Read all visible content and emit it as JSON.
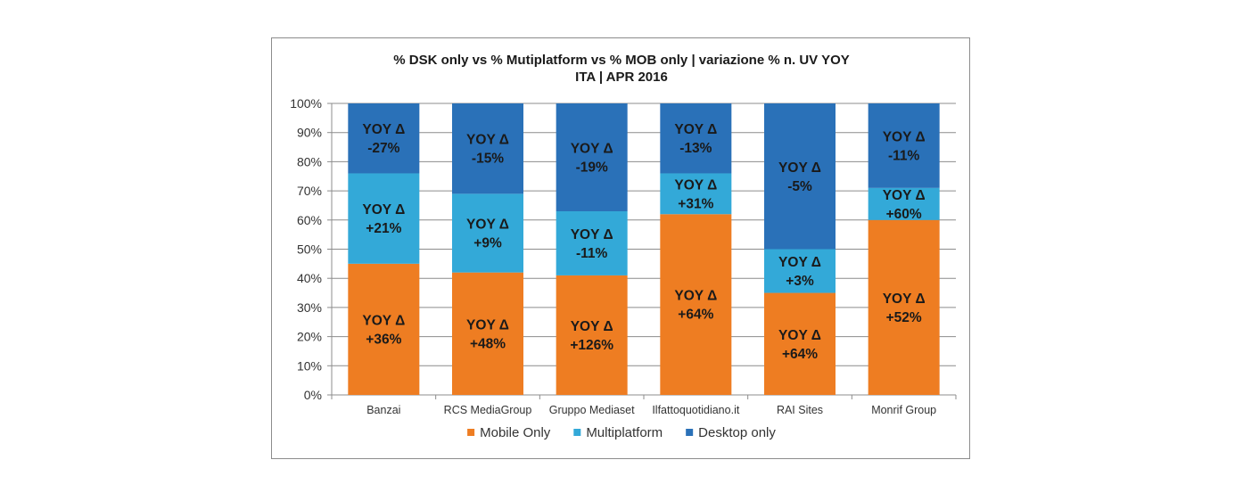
{
  "chart_data": {
    "type": "bar",
    "stacked": true,
    "title": [
      "% DSK only vs % Mutiplatform vs % MOB only | variazione % n. UV YOY",
      "ITA | APR 2016"
    ],
    "categories": [
      "Banzai",
      "RCS MediaGroup",
      "Gruppo Mediaset",
      "Ilfattoquotidiano.it",
      "RAI Sites",
      "Monrif Group"
    ],
    "ylim": [
      0,
      100
    ],
    "yticks": [
      "0%",
      "10%",
      "20%",
      "30%",
      "40%",
      "50%",
      "60%",
      "70%",
      "80%",
      "90%",
      "100%"
    ],
    "grid": true,
    "legend_position": "bottom",
    "series": [
      {
        "name": "Mobile Only",
        "color": "#ee7d22",
        "values": [
          45,
          42,
          41,
          62,
          35,
          60
        ],
        "labels": [
          [
            "YOY Δ",
            "+36%"
          ],
          [
            "YOY Δ",
            "+48%"
          ],
          [
            "YOY Δ",
            "+126%"
          ],
          [
            "YOY Δ",
            "+64%"
          ],
          [
            "YOY Δ",
            "+64%"
          ],
          [
            "YOY Δ",
            "+52%"
          ]
        ]
      },
      {
        "name": "Multiplatform",
        "color": "#33a9d8",
        "values": [
          31,
          27,
          22,
          14,
          15,
          11
        ],
        "labels": [
          [
            "YOY Δ",
            "+21%"
          ],
          [
            "YOY Δ",
            "+9%"
          ],
          [
            "YOY Δ",
            "-11%"
          ],
          [
            "YOY Δ",
            "+31%"
          ],
          [
            "YOY Δ",
            "+3%"
          ],
          [
            "YOY Δ",
            "+60%"
          ]
        ]
      },
      {
        "name": "Desktop only",
        "color": "#2a71b8",
        "values": [
          24,
          31,
          37,
          24,
          50,
          29
        ],
        "labels": [
          [
            "YOY Δ",
            "-27%"
          ],
          [
            "YOY Δ",
            "-15%"
          ],
          [
            "YOY Δ",
            "-19%"
          ],
          [
            "YOY Δ",
            "-13%"
          ],
          [
            "YOY Δ",
            "-5%"
          ],
          [
            "YOY Δ",
            "-11%"
          ]
        ]
      }
    ]
  }
}
